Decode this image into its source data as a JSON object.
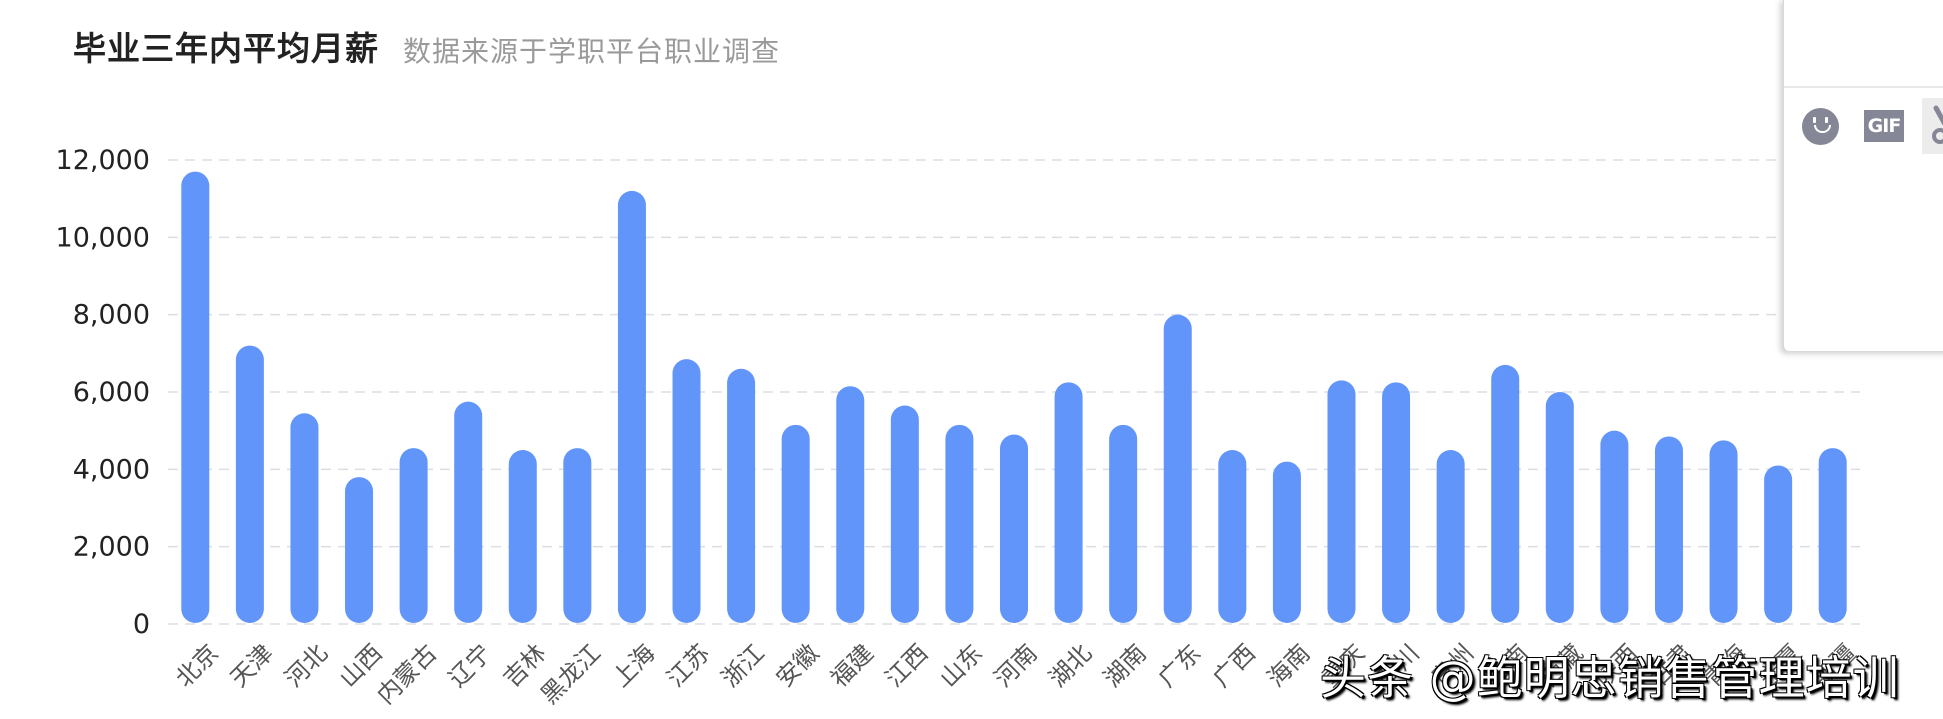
{
  "header": {
    "title": "毕业三年内平均月薪",
    "subtitle": "数据来源于学职平台职业调查"
  },
  "colors": {
    "bar": "#6195FA",
    "grid": "#dcdde3",
    "title": "#222222",
    "subtitle": "#9a9a9a",
    "axis_label": "#555555"
  },
  "chart_data": {
    "type": "bar",
    "title": "毕业三年内平均月薪",
    "subtitle": "数据来源于学职平台职业调查",
    "xlabel": "",
    "ylabel": "",
    "ylim": [
      0,
      12000
    ],
    "yticks": [
      0,
      2000,
      4000,
      6000,
      8000,
      10000,
      12000
    ],
    "ytick_labels": [
      "0",
      "2,000",
      "4,000",
      "6,000",
      "8,000",
      "10,000",
      "12,000"
    ],
    "grid": true,
    "legend": "none",
    "categories": [
      "北京",
      "天津",
      "河北",
      "山西",
      "内蒙古",
      "辽宁",
      "吉林",
      "黑龙江",
      "上海",
      "江苏",
      "浙江",
      "安徽",
      "福建",
      "江西",
      "山东",
      "河南",
      "湖北",
      "湖南",
      "广东",
      "广西",
      "海南",
      "重庆",
      "四川",
      "贵州",
      "云南",
      "西藏",
      "陕西",
      "甘肃",
      "青海",
      "宁夏",
      "新疆"
    ],
    "values": [
      11700,
      7200,
      5450,
      3800,
      4550,
      5750,
      4500,
      4550,
      11200,
      6850,
      6600,
      5150,
      6150,
      5650,
      5150,
      4900,
      6250,
      5150,
      8000,
      4500,
      4200,
      6300,
      6250,
      4500,
      6700,
      6000,
      5000,
      4850,
      4750,
      4100,
      4550
    ]
  },
  "popup": {
    "toolbar": {
      "emoji_icon": "emoji-icon",
      "gif_label": "GIF",
      "scissors_icon": "scissors-icon"
    }
  },
  "watermark": {
    "text": "头条 @鲍明忠销售管理培训"
  }
}
